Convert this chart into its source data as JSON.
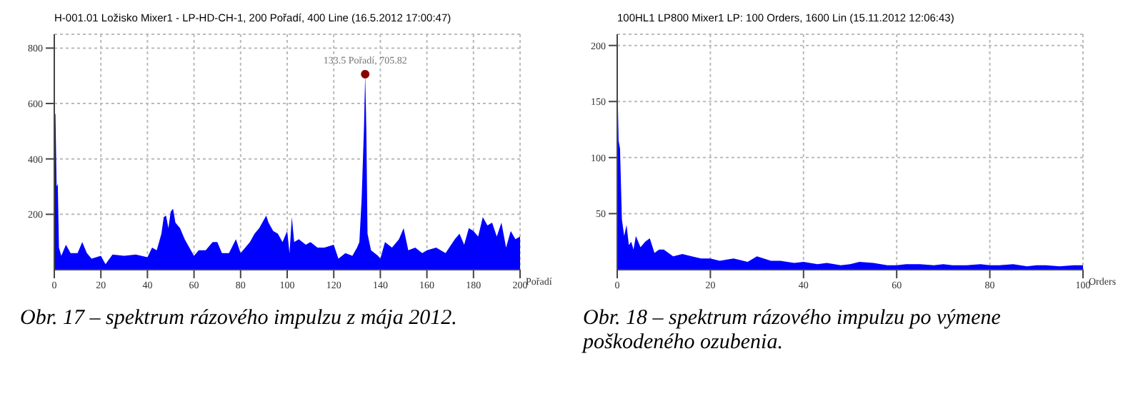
{
  "chart_data": [
    {
      "type": "area",
      "title": "H-001.01 Ložisko Mixer1 - LP-HD-CH-1, 200 Pořadí, 400 Line (16.5.2012 17:00:47)",
      "xlabel": "Pořadí",
      "xlim": [
        0,
        200
      ],
      "xticks": [
        0,
        20,
        40,
        60,
        80,
        100,
        120,
        140,
        160,
        180,
        200
      ],
      "ylim": [
        0,
        850
      ],
      "yticks": [
        200,
        400,
        600,
        800
      ],
      "grid": true,
      "legend": false,
      "annotations": [
        {
          "text": "133.5 Pořadí, 705.82",
          "x": 133.5,
          "y": 705.82
        },
        "Obr. 17 – spektrum rázového impulzu z mája 2012."
      ],
      "x": [
        0,
        0.5,
        1,
        1.5,
        2,
        3,
        5,
        7,
        10,
        12,
        14,
        16,
        20,
        22,
        25,
        30,
        35,
        40,
        42,
        44,
        46,
        47,
        48,
        49,
        50,
        51,
        52,
        54,
        56,
        58,
        60,
        62,
        65,
        68,
        70,
        72,
        75,
        78,
        80,
        84,
        86,
        88,
        90,
        91,
        92,
        94,
        96,
        98,
        100,
        101,
        102,
        103,
        105,
        108,
        110,
        113,
        116,
        120,
        122,
        125,
        128,
        130,
        131,
        132,
        133,
        133.5,
        134,
        134.5,
        136,
        139,
        140,
        142,
        145,
        148,
        150,
        152,
        155,
        158,
        160,
        164,
        168,
        172,
        174,
        176,
        178,
        180,
        182,
        184,
        186,
        188,
        190,
        192,
        194,
        196,
        198,
        200
      ],
      "series": [
        {
          "color": "#0000ff",
          "values": [
            570,
            560,
            300,
            310,
            80,
            50,
            90,
            60,
            60,
            100,
            60,
            40,
            50,
            20,
            55,
            50,
            55,
            45,
            80,
            70,
            130,
            190,
            195,
            150,
            210,
            220,
            170,
            150,
            110,
            80,
            50,
            70,
            70,
            100,
            100,
            60,
            60,
            110,
            60,
            100,
            130,
            150,
            180,
            195,
            170,
            140,
            130,
            100,
            140,
            60,
            190,
            100,
            110,
            90,
            100,
            80,
            80,
            90,
            40,
            60,
            50,
            80,
            100,
            260,
            520,
            705.82,
            500,
            130,
            70,
            50,
            40,
            100,
            80,
            110,
            150,
            70,
            80,
            60,
            70,
            80,
            60,
            110,
            130,
            90,
            150,
            140,
            120,
            190,
            160,
            170,
            120,
            170,
            80,
            140,
            110,
            120
          ]
        }
      ]
    },
    {
      "type": "area",
      "title": "100HL1 LP800 Mixer1 LP: 100 Orders, 1600 Lin (15.11.2012 12:06:43)",
      "xlabel": "Orders",
      "xlim": [
        0,
        100
      ],
      "xticks": [
        0,
        20,
        40,
        60,
        80,
        100
      ],
      "ylim": [
        0,
        210
      ],
      "yticks": [
        50,
        100,
        150,
        200
      ],
      "grid": true,
      "legend": false,
      "annotations": [
        "Obr. 18 – spektrum rázového impulzu po výmene poškodeného ozubenia."
      ],
      "x": [
        0,
        0.3,
        0.6,
        1,
        1.5,
        2,
        2.5,
        3,
        3.5,
        4,
        5,
        6,
        7,
        8,
        9,
        10,
        12,
        14,
        16,
        18,
        20,
        22,
        25,
        28,
        30,
        33,
        35,
        38,
        40,
        43,
        45,
        48,
        50,
        52,
        55,
        58,
        60,
        62,
        65,
        68,
        70,
        72,
        75,
        78,
        80,
        82,
        85,
        88,
        90,
        92,
        95,
        98,
        100
      ],
      "series": [
        {
          "color": "#0000ff",
          "values": [
            175,
            115,
            108,
            45,
            30,
            40,
            22,
            25,
            18,
            30,
            20,
            25,
            28,
            15,
            18,
            18,
            12,
            14,
            12,
            10,
            10,
            8,
            10,
            7,
            12,
            8,
            8,
            6,
            7,
            5,
            6,
            4,
            5,
            7,
            6,
            4,
            4,
            5,
            5,
            4,
            5,
            4,
            4,
            5,
            4,
            4,
            5,
            3,
            4,
            4,
            3,
            4,
            4
          ]
        }
      ]
    }
  ]
}
